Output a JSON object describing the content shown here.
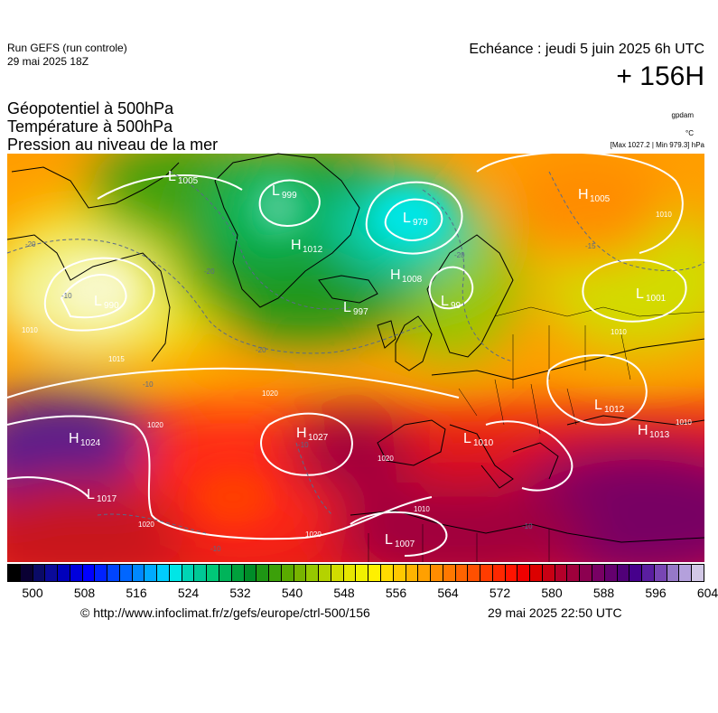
{
  "header": {
    "run_name": "Run GEFS (run controle)",
    "run_date": "29 mai 2025 18Z",
    "echeance": "Echéance : jeudi 5 juin 2025 6h UTC",
    "lead_time": "+ 156H",
    "titles": [
      "Géopotentiel à 500hPa",
      "Température à 500hPa",
      "Pression au niveau de la mer"
    ],
    "unit_geopotential": "gpdam",
    "unit_temperature": "°C",
    "max_min": "[Max 1027.2 | Min 979.3] hPa"
  },
  "map": {
    "pressure_centers": [
      {
        "type": "L",
        "value": "990"
      },
      {
        "type": "L",
        "value": "999"
      },
      {
        "type": "L",
        "value": "979"
      },
      {
        "type": "H",
        "value": "1012"
      },
      {
        "type": "H",
        "value": "1008"
      },
      {
        "type": "L",
        "value": "997"
      },
      {
        "type": "L",
        "value": "99"
      },
      {
        "type": "H",
        "value": "1024"
      },
      {
        "type": "L",
        "value": "1017"
      },
      {
        "type": "H",
        "value": "1027"
      },
      {
        "type": "L",
        "value": "1010"
      },
      {
        "type": "L",
        "value": "1007"
      },
      {
        "type": "L",
        "value": "1001"
      },
      {
        "type": "L",
        "value": "1012"
      },
      {
        "type": "H",
        "value": "1013"
      },
      {
        "type": "H",
        "value": "1005"
      },
      {
        "type": "L",
        "value": "1005"
      }
    ],
    "isobar_labels": [
      "1020",
      "1020",
      "1020",
      "1020",
      "1020",
      "1010",
      "1010",
      "1010",
      "1015",
      "1010",
      "1010"
    ],
    "temperature_labels": [
      "-20",
      "-20",
      "-20",
      "-20",
      "-15",
      "-10",
      "-10",
      "-10",
      "-10",
      "-10"
    ]
  },
  "legend": {
    "colors": [
      "#000000",
      "#0a0033",
      "#0a0a66",
      "#0a0a99",
      "#0000bb",
      "#0000dd",
      "#0000ff",
      "#0022ff",
      "#0044ff",
      "#0066ff",
      "#0088ff",
      "#00aaff",
      "#00ccff",
      "#00e6e6",
      "#00d4b4",
      "#00c896",
      "#00c878",
      "#00b45a",
      "#00a03c",
      "#008c28",
      "#1e9614",
      "#3ca00a",
      "#5aaa00",
      "#78b400",
      "#96c800",
      "#b4d200",
      "#d2dc00",
      "#e6e600",
      "#f0f000",
      "#fff000",
      "#ffdc00",
      "#ffc800",
      "#ffb400",
      "#ffa000",
      "#ff8c00",
      "#ff7800",
      "#ff6400",
      "#ff5000",
      "#ff3c00",
      "#ff2800",
      "#ff1400",
      "#f00000",
      "#dc0000",
      "#c80014",
      "#b4002a",
      "#a0003c",
      "#8c0050",
      "#780064",
      "#64006e",
      "#500078",
      "#46008c",
      "#5a1ea0",
      "#7846b4",
      "#9678c8",
      "#b4a0dc",
      "#d2c8e6"
    ],
    "tick_labels": [
      "500",
      "508",
      "516",
      "524",
      "532",
      "540",
      "548",
      "556",
      "564",
      "572",
      "580",
      "588",
      "596",
      "604"
    ]
  },
  "footer": {
    "credit": "© http://www.infoclimat.fr/z/gefs/europe/ctrl-500/156",
    "generated": "29 mai 2025 22:50 UTC"
  }
}
